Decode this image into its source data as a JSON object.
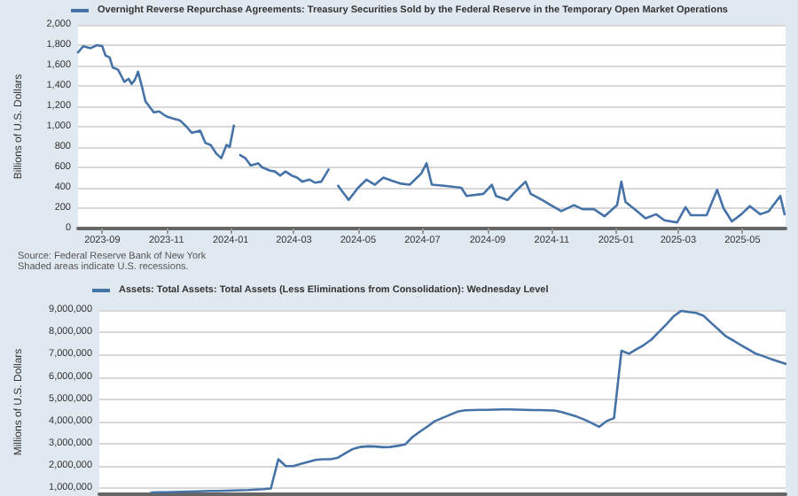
{
  "chart_data": [
    {
      "type": "line",
      "ylabel": "Billions of U.S. Dollars",
      "legend": "top left",
      "grid": "y",
      "marker": "none",
      "annotations": [
        "Source: Federal Reserve Bank of New York",
        "Shaded areas indicate U.S. recessions."
      ],
      "xlim": [
        "2023-08-09",
        "2025-06-11"
      ],
      "xticks": [
        "2023-09",
        "2023-11",
        "2024-01",
        "2024-03",
        "2024-05",
        "2024-07",
        "2024-09",
        "2024-11",
        "2025-01",
        "2025-03",
        "2025-05"
      ],
      "ylim": [
        0,
        2000
      ],
      "yticks": [
        0,
        200,
        400,
        600,
        800,
        {
          "value": 1000,
          "label": "1,000"
        },
        {
          "value": 1200,
          "label": "1,200"
        },
        {
          "value": 1400,
          "label": "1,400"
        },
        {
          "value": 1600,
          "label": "1,600"
        },
        {
          "value": 1800,
          "label": "1,800"
        },
        {
          "value": 2000,
          "label": "2,000"
        }
      ],
      "series": [
        {
          "name": "Overnight Reverse Repurchase Agreements: Treasury Securities Sold by the Federal Reserve in the Temporary Open Market Operations",
          "color": "#4572a7",
          "x": [
            "2023-08-09",
            "2023-08-14",
            "2023-08-21",
            "2023-08-27",
            "2023-09-01",
            "2023-09-04",
            "2023-09-08",
            "2023-09-11",
            "2023-09-16",
            "2023-09-19",
            "2023-09-22",
            "2023-09-26",
            "2023-09-29",
            "2023-10-02",
            "2023-10-05",
            "2023-10-09",
            "2023-10-12",
            "2023-10-17",
            "2023-10-20",
            "2023-10-25",
            "2023-11-01",
            "2023-11-07",
            "2023-11-14",
            "2023-11-20",
            "2023-11-25",
            "2023-12-03",
            "2023-12-08",
            "2023-12-13",
            "2023-12-18",
            "2023-12-23",
            "2023-12-28",
            "2023-12-31",
            "2024-01-04",
            "2024-01-07",
            "2024-01-10",
            "2024-01-15",
            "2024-01-20",
            "2024-01-27",
            "2024-01-31",
            "2024-02-07",
            "2024-02-12",
            "2024-02-17",
            "2024-02-22",
            "2024-02-28",
            "2024-03-04",
            "2024-03-09",
            "2024-03-16",
            "2024-03-21",
            "2024-03-27",
            "2024-04-03",
            "2024-04-08",
            "2024-04-12",
            "2024-04-22",
            "2024-05-01",
            "2024-05-09",
            "2024-05-17",
            "2024-05-25",
            "2024-06-02",
            "2024-06-11",
            "2024-06-19",
            "2024-06-30",
            "2024-07-05",
            "2024-07-10",
            "2024-07-22",
            "2024-08-07",
            "2024-08-12",
            "2024-08-28",
            "2024-09-05",
            "2024-09-09",
            "2024-09-20",
            "2024-09-28",
            "2024-10-07",
            "2024-10-12",
            "2024-10-23",
            "2024-10-31",
            "2024-11-10",
            "2024-11-22",
            "2024-11-30",
            "2024-12-11",
            "2024-12-21",
            "2025-01-02",
            "2025-01-06",
            "2025-01-10",
            "2025-01-21",
            "2025-01-29",
            "2025-02-08",
            "2025-02-16",
            "2025-02-28",
            "2025-03-08",
            "2025-03-13",
            "2025-03-28",
            "2025-04-07",
            "2025-04-13",
            "2025-04-21",
            "2025-04-30",
            "2025-05-08",
            "2025-05-18",
            "2025-05-26",
            "2025-06-06",
            "2025-06-10"
          ],
          "values": [
            1730,
            1790,
            1770,
            1800,
            1790,
            1700,
            1680,
            1580,
            1560,
            1500,
            1440,
            1470,
            1420,
            1460,
            1540,
            1380,
            1250,
            1180,
            1140,
            1150,
            1100,
            1080,
            1060,
            1000,
            940,
            960,
            840,
            820,
            740,
            690,
            820,
            800,
            1010,
            null,
            720,
            690,
            620,
            640,
            600,
            570,
            560,
            520,
            560,
            520,
            500,
            460,
            480,
            450,
            460,
            580,
            null,
            420,
            280,
            400,
            480,
            430,
            500,
            470,
            440,
            430,
            540,
            640,
            430,
            420,
            400,
            320,
            340,
            430,
            320,
            280,
            370,
            460,
            340,
            280,
            230,
            170,
            230,
            190,
            190,
            120,
            230,
            460,
            260,
            170,
            100,
            140,
            80,
            60,
            210,
            130,
            130,
            380,
            200,
            70,
            140,
            220,
            140,
            170,
            320,
            140
          ]
        }
      ]
    },
    {
      "type": "line",
      "ylabel": "Millions of U.S. Dollars",
      "legend": "top left",
      "grid": "y",
      "marker": "none",
      "tick_labels": "y",
      "categories": [
        null,
        null,
        null,
        null,
        null,
        null,
        null,
        null,
        null,
        null,
        null,
        null,
        null,
        null,
        null,
        null,
        null,
        null,
        null,
        null,
        null,
        null,
        null,
        null,
        null,
        null,
        null,
        null,
        null,
        null,
        null,
        null,
        null,
        null,
        null,
        null,
        null,
        null,
        null,
        null,
        null,
        null,
        null,
        null,
        null,
        null,
        null,
        null,
        null,
        null,
        null,
        null,
        null,
        null,
        null,
        null,
        null,
        null,
        null,
        null,
        null,
        null,
        null,
        null,
        null,
        null,
        null,
        null,
        null,
        null,
        null,
        null,
        null,
        null,
        null,
        null,
        null,
        null,
        null,
        null,
        null,
        null,
        null,
        null,
        null,
        null,
        null,
        null,
        null,
        null,
        null,
        null,
        null
      ],
      "ylim": [
        740000,
        9000000
      ],
      "yticks": [
        {
          "value": 1000000,
          "label": "1,000,000"
        },
        {
          "value": 2000000,
          "label": "2,000,000"
        },
        {
          "value": 3000000,
          "label": "3,000,000"
        },
        {
          "value": 4000000,
          "label": "4,000,000"
        },
        {
          "value": 5000000,
          "label": "5,000,000"
        },
        {
          "value": 6000000,
          "label": "6,000,000"
        },
        {
          "value": 7000000,
          "label": "7,000,000"
        },
        {
          "value": 8000000,
          "label": "8,000,000"
        },
        {
          "value": 9000000,
          "label": "9,000,000"
        }
      ],
      "series": [
        {
          "name": "Assets: Total Assets: Total Assets (Less Eliminations from Consolidation): Wednesday Level",
          "color": "#4572a7",
          "values": [
            null,
            null,
            null,
            null,
            null,
            null,
            null,
            820000,
            830000,
            830000,
            840000,
            850000,
            860000,
            870000,
            880000,
            890000,
            890000,
            900000,
            910000,
            920000,
            930000,
            950000,
            970000,
            1000000,
            2310000,
            2000000,
            2000000,
            2100000,
            2190000,
            2280000,
            2310000,
            2310000,
            2380000,
            2580000,
            2770000,
            2860000,
            2890000,
            2880000,
            2850000,
            2860000,
            2910000,
            2970000,
            3310000,
            3550000,
            3780000,
            4020000,
            4160000,
            4300000,
            4440000,
            4500000,
            4510000,
            4520000,
            4520000,
            4530000,
            4540000,
            4540000,
            4530000,
            4520000,
            4510000,
            4510000,
            4500000,
            4490000,
            4420000,
            4320000,
            4220000,
            4090000,
            3930000,
            3760000,
            4020000,
            4150000,
            7170000,
            7040000,
            7240000,
            7430000,
            7670000,
            8010000,
            8350000,
            8720000,
            8960000,
            8910000,
            8870000,
            8740000,
            8430000,
            8130000,
            7820000,
            7630000,
            7430000,
            7240000,
            7040000,
            6930000,
            6810000,
            6700000,
            6590000
          ]
        }
      ]
    }
  ]
}
